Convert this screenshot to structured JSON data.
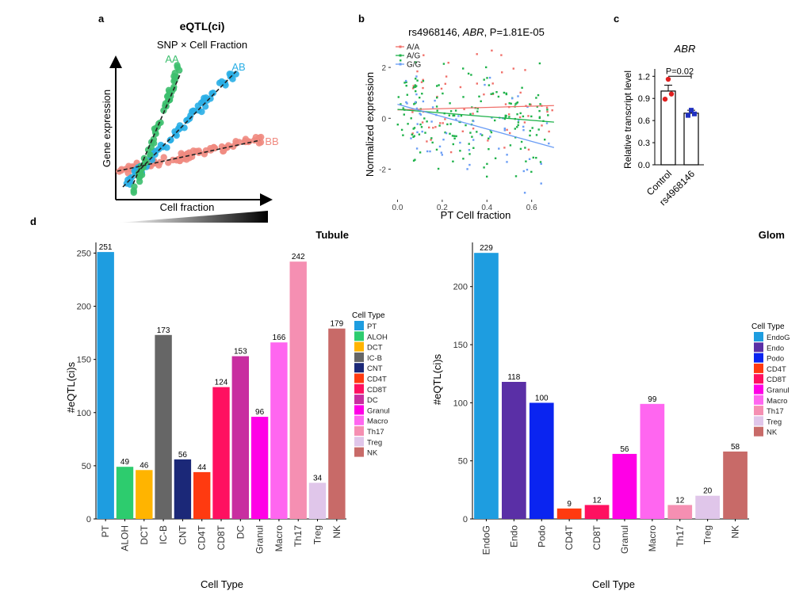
{
  "panel_labels": {
    "a": "a",
    "b": "b",
    "c": "c",
    "d": "d"
  },
  "panel_a": {
    "title": "eQTL(ci)",
    "subtitle": "SNP × Cell Fraction",
    "xlabel": "Cell fraction",
    "ylabel": "Gene expression",
    "genotypes": [
      {
        "name": "AA",
        "color": "#3dbf6e"
      },
      {
        "name": "AB",
        "color": "#29aee5"
      },
      {
        "name": "BB",
        "color": "#f08a80"
      }
    ]
  },
  "chart_data": [
    {
      "type": "scatter",
      "title_prefix": "rs4968146, ",
      "title_gene": "ABR",
      "title_suffix": ", P=1.81E-05",
      "xlabel": "PT Cell fraction",
      "ylabel": "Normalized expression",
      "xlim": [
        -0.03,
        0.75
      ],
      "ylim": [
        -3.2,
        3.0
      ],
      "xticks": [
        0.0,
        0.2,
        0.4,
        0.6
      ],
      "xtick_labels": [
        "0.0",
        "0.2",
        "0.4",
        "0.6"
      ],
      "yticks": [
        -2,
        0,
        2
      ],
      "ytick_labels": [
        "-2",
        "0",
        "2"
      ],
      "series": [
        {
          "name": "A/A",
          "color": "#f0706a",
          "fit": [
            [
              0.0,
              0.33
            ],
            [
              0.7,
              0.5
            ]
          ]
        },
        {
          "name": "A/G",
          "color": "#1fb24a",
          "fit": [
            [
              0.0,
              0.35
            ],
            [
              0.7,
              -0.15
            ]
          ]
        },
        {
          "name": "G/G",
          "color": "#6a9df5",
          "fit": [
            [
              0.0,
              0.55
            ],
            [
              0.7,
              -1.15
            ]
          ]
        }
      ]
    },
    {
      "type": "bar",
      "title": "ABR",
      "categories": [
        "Control",
        "rs4968146"
      ],
      "values": [
        1.0,
        0.7
      ],
      "errors": [
        0.08,
        0.04
      ],
      "points": [
        [
          1.16,
          0.96,
          0.89
        ],
        [
          0.74,
          0.69,
          0.67
        ]
      ],
      "point_colors": [
        "#e02020",
        "#2030c0"
      ],
      "ylabel": "Relative transcript level",
      "ylim": [
        0,
        1.3
      ],
      "yticks": [
        0,
        0.3,
        0.6,
        0.9,
        1.2
      ],
      "ytick_labels": [
        "0.0",
        "0.3",
        "0.6",
        "0.9",
        "1.2"
      ],
      "annotation": "P=0.02"
    },
    {
      "type": "bar",
      "title": "Tubule",
      "categories": [
        "PT",
        "ALOH",
        "DCT",
        "IC-B",
        "CNT",
        "CD4T",
        "CD8T",
        "DC",
        "Granul",
        "Macro",
        "Th17",
        "Treg",
        "NK"
      ],
      "values": [
        251,
        49,
        46,
        173,
        56,
        44,
        124,
        153,
        96,
        166,
        242,
        34,
        179
      ],
      "colors": [
        "#1e9de0",
        "#2dcc6e",
        "#ffb400",
        "#666666",
        "#1b2878",
        "#ff3a10",
        "#ff1060",
        "#c82ea0",
        "#ff00e6",
        "#ff66f0",
        "#f58fb2",
        "#e0c6ea",
        "#c86a68"
      ],
      "xlabel": "Cell Type",
      "ylabel": "#eQTL(ci)s",
      "ylim": [
        0,
        260
      ],
      "yticks": [
        0,
        50,
        100,
        150,
        200,
        250
      ],
      "ytick_labels": [
        "0",
        "50",
        "100",
        "150",
        "200",
        "250"
      ],
      "legend_title": "Cell Type",
      "legend_position": "right"
    },
    {
      "type": "bar",
      "title": "Glom",
      "categories": [
        "EndoG",
        "Endo",
        "Podo",
        "CD4T",
        "CD8T",
        "Granul",
        "Macro",
        "Th17",
        "Treg",
        "NK"
      ],
      "values": [
        229,
        118,
        100,
        9,
        12,
        56,
        99,
        12,
        20,
        58
      ],
      "colors": [
        "#1e9de0",
        "#5a2fa6",
        "#0a24f0",
        "#ff3a10",
        "#ff1060",
        "#ff00e6",
        "#ff66f0",
        "#f58fb2",
        "#e0c6ea",
        "#c86a68"
      ],
      "xlabel": "Cell Type",
      "ylabel": "#eQTL(ci)s",
      "ylim": [
        0,
        238
      ],
      "yticks": [
        0,
        50,
        100,
        150,
        200
      ],
      "ytick_labels": [
        "0",
        "50",
        "100",
        "150",
        "200"
      ],
      "legend_title": "Cell Type",
      "legend_position": "right"
    }
  ]
}
